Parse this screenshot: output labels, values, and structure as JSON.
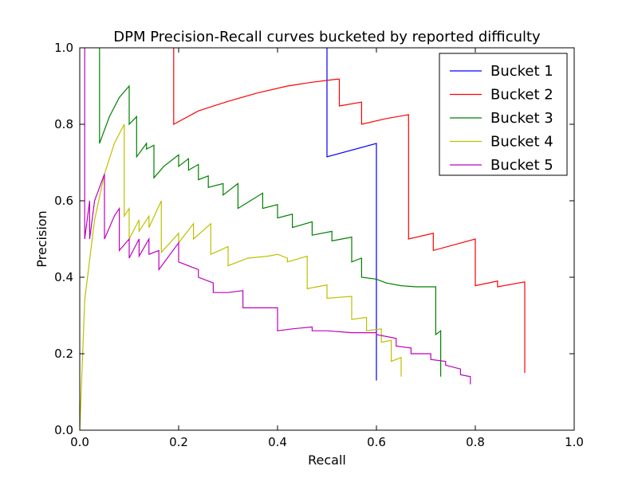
{
  "chart_data": {
    "type": "line",
    "title": "DPM Precision-Recall curves bucketed by reported difficulty",
    "xlabel": "Recall",
    "ylabel": "Precision",
    "xlim": [
      0.0,
      1.0
    ],
    "ylim": [
      0.0,
      1.0
    ],
    "xticks": [
      "0.0",
      "0.2",
      "0.4",
      "0.6",
      "0.8",
      "1.0"
    ],
    "yticks": [
      "0.0",
      "0.2",
      "0.4",
      "0.6",
      "0.8",
      "1.0"
    ],
    "grid": false,
    "legend_position": "top-right",
    "series": [
      {
        "name": "Bucket 1",
        "color": "#0000ff",
        "points": [
          [
            0.5,
            1.0
          ],
          [
            0.5,
            0.715
          ],
          [
            0.6,
            0.75
          ],
          [
            0.6,
            0.13
          ]
        ]
      },
      {
        "name": "Bucket 2",
        "color": "#ff0000",
        "points": [
          [
            0.19,
            1.0
          ],
          [
            0.19,
            0.8
          ],
          [
            0.24,
            0.835
          ],
          [
            0.3,
            0.86
          ],
          [
            0.36,
            0.882
          ],
          [
            0.42,
            0.9
          ],
          [
            0.47,
            0.91
          ],
          [
            0.52,
            0.918
          ],
          [
            0.525,
            0.918
          ],
          [
            0.525,
            0.848
          ],
          [
            0.57,
            0.858
          ],
          [
            0.57,
            0.8
          ],
          [
            0.62,
            0.815
          ],
          [
            0.665,
            0.825
          ],
          [
            0.665,
            0.5
          ],
          [
            0.715,
            0.515
          ],
          [
            0.715,
            0.47
          ],
          [
            0.8,
            0.5
          ],
          [
            0.8,
            0.378
          ],
          [
            0.845,
            0.39
          ],
          [
            0.845,
            0.375
          ],
          [
            0.9,
            0.388
          ],
          [
            0.9,
            0.15
          ]
        ]
      },
      {
        "name": "Bucket 3",
        "color": "#008000",
        "points": [
          [
            0.04,
            1.0
          ],
          [
            0.04,
            0.75
          ],
          [
            0.06,
            0.82
          ],
          [
            0.08,
            0.87
          ],
          [
            0.1,
            0.9
          ],
          [
            0.1,
            0.8
          ],
          [
            0.115,
            0.82
          ],
          [
            0.115,
            0.715
          ],
          [
            0.135,
            0.75
          ],
          [
            0.135,
            0.735
          ],
          [
            0.15,
            0.745
          ],
          [
            0.15,
            0.66
          ],
          [
            0.17,
            0.69
          ],
          [
            0.2,
            0.72
          ],
          [
            0.2,
            0.69
          ],
          [
            0.22,
            0.71
          ],
          [
            0.22,
            0.68
          ],
          [
            0.24,
            0.695
          ],
          [
            0.24,
            0.655
          ],
          [
            0.26,
            0.665
          ],
          [
            0.26,
            0.635
          ],
          [
            0.29,
            0.645
          ],
          [
            0.29,
            0.615
          ],
          [
            0.32,
            0.645
          ],
          [
            0.32,
            0.58
          ],
          [
            0.37,
            0.62
          ],
          [
            0.37,
            0.58
          ],
          [
            0.4,
            0.59
          ],
          [
            0.4,
            0.555
          ],
          [
            0.43,
            0.565
          ],
          [
            0.43,
            0.53
          ],
          [
            0.47,
            0.545
          ],
          [
            0.47,
            0.51
          ],
          [
            0.51,
            0.52
          ],
          [
            0.51,
            0.495
          ],
          [
            0.55,
            0.505
          ],
          [
            0.55,
            0.44
          ],
          [
            0.57,
            0.45
          ],
          [
            0.57,
            0.4
          ],
          [
            0.6,
            0.395
          ],
          [
            0.62,
            0.385
          ],
          [
            0.65,
            0.378
          ],
          [
            0.68,
            0.375
          ],
          [
            0.72,
            0.375
          ],
          [
            0.72,
            0.25
          ],
          [
            0.73,
            0.26
          ],
          [
            0.73,
            0.14
          ]
        ]
      },
      {
        "name": "Bucket 4",
        "color": "#bfbf00",
        "points": [
          [
            0.0,
            0.0
          ],
          [
            0.01,
            0.34
          ],
          [
            0.03,
            0.55
          ],
          [
            0.05,
            0.67
          ],
          [
            0.07,
            0.75
          ],
          [
            0.09,
            0.8
          ],
          [
            0.09,
            0.56
          ],
          [
            0.1,
            0.58
          ],
          [
            0.1,
            0.5
          ],
          [
            0.12,
            0.55
          ],
          [
            0.12,
            0.52
          ],
          [
            0.14,
            0.56
          ],
          [
            0.14,
            0.53
          ],
          [
            0.165,
            0.6
          ],
          [
            0.165,
            0.465
          ],
          [
            0.2,
            0.515
          ],
          [
            0.2,
            0.49
          ],
          [
            0.23,
            0.54
          ],
          [
            0.23,
            0.5
          ],
          [
            0.265,
            0.54
          ],
          [
            0.265,
            0.46
          ],
          [
            0.3,
            0.48
          ],
          [
            0.3,
            0.43
          ],
          [
            0.34,
            0.45
          ],
          [
            0.38,
            0.455
          ],
          [
            0.4,
            0.46
          ],
          [
            0.42,
            0.45
          ],
          [
            0.42,
            0.44
          ],
          [
            0.46,
            0.455
          ],
          [
            0.46,
            0.37
          ],
          [
            0.5,
            0.38
          ],
          [
            0.5,
            0.345
          ],
          [
            0.55,
            0.35
          ],
          [
            0.55,
            0.29
          ],
          [
            0.58,
            0.295
          ],
          [
            0.58,
            0.26
          ],
          [
            0.61,
            0.265
          ],
          [
            0.61,
            0.23
          ],
          [
            0.63,
            0.235
          ],
          [
            0.63,
            0.18
          ],
          [
            0.65,
            0.19
          ],
          [
            0.65,
            0.14
          ]
        ]
      },
      {
        "name": "Bucket 5",
        "color": "#bf00bf",
        "points": [
          [
            0.01,
            1.0
          ],
          [
            0.01,
            0.5
          ],
          [
            0.02,
            0.6
          ],
          [
            0.02,
            0.5
          ],
          [
            0.03,
            0.6
          ],
          [
            0.05,
            0.67
          ],
          [
            0.05,
            0.5
          ],
          [
            0.07,
            0.56
          ],
          [
            0.08,
            0.58
          ],
          [
            0.08,
            0.47
          ],
          [
            0.1,
            0.5
          ],
          [
            0.1,
            0.45
          ],
          [
            0.12,
            0.5
          ],
          [
            0.12,
            0.455
          ],
          [
            0.14,
            0.5
          ],
          [
            0.14,
            0.46
          ],
          [
            0.16,
            0.47
          ],
          [
            0.16,
            0.42
          ],
          [
            0.2,
            0.49
          ],
          [
            0.2,
            0.44
          ],
          [
            0.24,
            0.42
          ],
          [
            0.24,
            0.4
          ],
          [
            0.27,
            0.385
          ],
          [
            0.27,
            0.36
          ],
          [
            0.3,
            0.36
          ],
          [
            0.33,
            0.365
          ],
          [
            0.33,
            0.32
          ],
          [
            0.37,
            0.32
          ],
          [
            0.4,
            0.32
          ],
          [
            0.4,
            0.26
          ],
          [
            0.43,
            0.265
          ],
          [
            0.47,
            0.27
          ],
          [
            0.47,
            0.26
          ],
          [
            0.5,
            0.26
          ],
          [
            0.55,
            0.255
          ],
          [
            0.6,
            0.255
          ],
          [
            0.6,
            0.25
          ],
          [
            0.64,
            0.24
          ],
          [
            0.64,
            0.22
          ],
          [
            0.67,
            0.215
          ],
          [
            0.67,
            0.2
          ],
          [
            0.71,
            0.2
          ],
          [
            0.71,
            0.185
          ],
          [
            0.74,
            0.18
          ],
          [
            0.74,
            0.17
          ],
          [
            0.77,
            0.16
          ],
          [
            0.77,
            0.145
          ],
          [
            0.79,
            0.14
          ],
          [
            0.79,
            0.12
          ]
        ]
      }
    ]
  }
}
